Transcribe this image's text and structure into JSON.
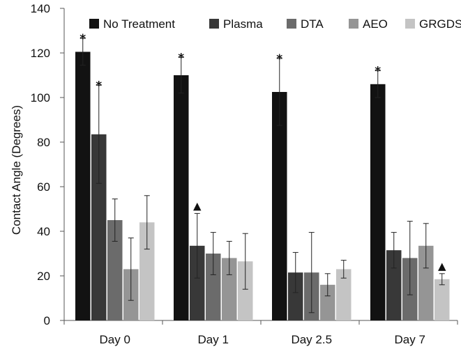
{
  "chart_data": {
    "type": "bar",
    "categories": [
      "Day 0",
      "Day 1",
      "Day 2.5",
      "Day 7"
    ],
    "ylabel": "Contact Angle (Degrees)",
    "xlabel": "",
    "ylim": [
      0,
      140
    ],
    "yticks": [
      0,
      20,
      40,
      60,
      80,
      100,
      120,
      140
    ],
    "grid": false,
    "legend_position": "top",
    "series": [
      {
        "name": "No Treatment",
        "color": "#121212",
        "values": [
          120.5,
          110,
          102.5,
          106
        ],
        "err": [
          6,
          8,
          15,
          6
        ]
      },
      {
        "name": "Plasma",
        "color": "#383838",
        "values": [
          83.5,
          33.5,
          21.5,
          31.5
        ],
        "err": [
          22,
          14.5,
          9,
          8
        ]
      },
      {
        "name": "DTA",
        "color": "#6b6b6b",
        "values": [
          45,
          30,
          21.5,
          28
        ],
        "err": [
          9.5,
          9.5,
          18,
          16.5
        ]
      },
      {
        "name": "AEO",
        "color": "#959595",
        "values": [
          23,
          28,
          16,
          33.5
        ],
        "err": [
          14,
          7.5,
          5,
          10
        ]
      },
      {
        "name": "GRGDS",
        "color": "#c4c4c4",
        "values": [
          44,
          26.5,
          23,
          18.5
        ],
        "err": [
          12,
          12.5,
          4,
          2.5
        ]
      }
    ],
    "annotations": [
      {
        "text": "*",
        "series": 0,
        "category": 0
      },
      {
        "text": "*",
        "series": 1,
        "category": 0
      },
      {
        "text": "*",
        "series": 0,
        "category": 1
      },
      {
        "text": "▲",
        "series": 1,
        "category": 1
      },
      {
        "text": "*",
        "series": 0,
        "category": 2
      },
      {
        "text": "*",
        "series": 0,
        "category": 3
      },
      {
        "text": "▲",
        "series": 4,
        "category": 3
      }
    ]
  }
}
